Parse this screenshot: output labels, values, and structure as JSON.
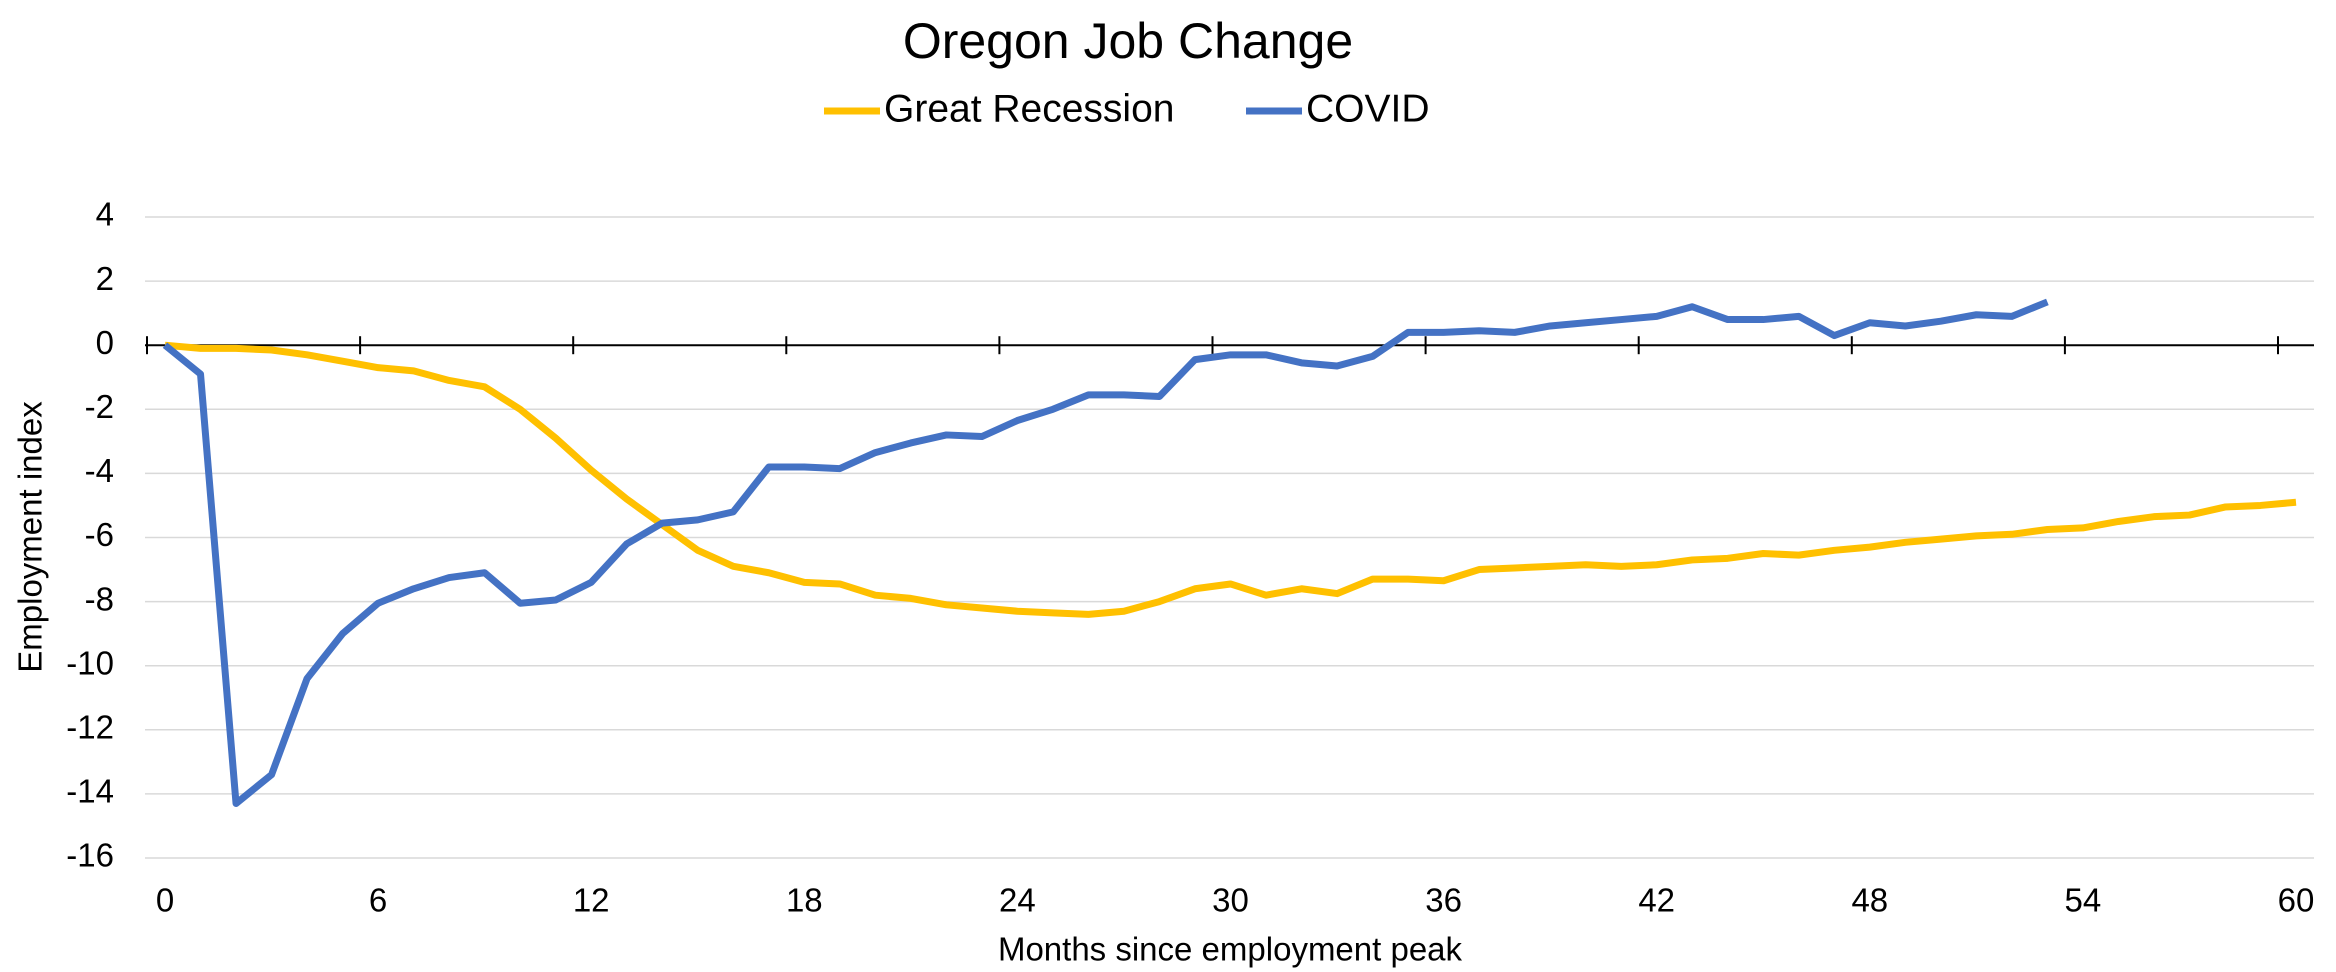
{
  "chart_data": {
    "type": "line",
    "title": "Oregon Job Change",
    "x_label": "Months since employment peak",
    "y_label": "Employment index",
    "x": [
      0,
      1,
      2,
      3,
      4,
      5,
      6,
      7,
      8,
      9,
      10,
      11,
      12,
      13,
      14,
      15,
      16,
      17,
      18,
      19,
      20,
      21,
      22,
      23,
      24,
      25,
      26,
      27,
      28,
      29,
      30,
      31,
      32,
      33,
      34,
      35,
      36,
      37,
      38,
      39,
      40,
      41,
      42,
      43,
      44,
      45,
      46,
      47,
      48,
      49,
      50,
      51,
      52,
      53,
      54,
      55,
      56,
      57,
      58,
      59,
      60
    ],
    "series": [
      {
        "name": "Great Recession",
        "color": "#FFC000",
        "values": [
          0,
          -0.1,
          -0.1,
          -0.15,
          -0.3,
          -0.5,
          -0.7,
          -0.8,
          -1.1,
          -1.3,
          -2.0,
          -2.9,
          -3.9,
          -4.8,
          -5.6,
          -6.4,
          -6.9,
          -7.1,
          -7.4,
          -7.45,
          -7.8,
          -7.9,
          -8.1,
          -8.2,
          -8.3,
          -8.35,
          -8.4,
          -8.3,
          -8.0,
          -7.6,
          -7.45,
          -7.8,
          -7.6,
          -7.75,
          -7.3,
          -7.3,
          -7.35,
          -7.0,
          -6.95,
          -6.9,
          -6.85,
          -6.9,
          -6.85,
          -6.7,
          -6.65,
          -6.5,
          -6.55,
          -6.4,
          -6.3,
          -6.15,
          -6.05,
          -5.95,
          -5.9,
          -5.75,
          -5.7,
          -5.5,
          -5.35,
          -5.3,
          -5.05,
          -5.0,
          -4.9
        ]
      },
      {
        "name": "COVID",
        "color": "#4472C4",
        "values": [
          0,
          -0.9,
          -14.3,
          -13.4,
          -10.4,
          -9.0,
          -8.05,
          -7.6,
          -7.25,
          -7.1,
          -8.05,
          -7.95,
          -7.4,
          -6.2,
          -5.55,
          -5.45,
          -5.2,
          -3.8,
          -3.8,
          -3.85,
          -3.35,
          -3.05,
          -2.8,
          -2.85,
          -2.35,
          -2.0,
          -1.55,
          -1.55,
          -1.6,
          -0.45,
          -0.3,
          -0.3,
          -0.55,
          -0.65,
          -0.35,
          0.4,
          0.4,
          0.45,
          0.4,
          0.6,
          0.7,
          0.8,
          0.9,
          1.2,
          0.8,
          0.8,
          0.9,
          0.3,
          0.7,
          0.6,
          0.75,
          0.95,
          0.9,
          1.35,
          null,
          null,
          null,
          null,
          null,
          null,
          null
        ]
      }
    ],
    "xlim": [
      0,
      60
    ],
    "xticks": [
      0,
      6,
      12,
      18,
      24,
      30,
      36,
      42,
      48,
      54,
      60
    ],
    "ylim": [
      -16,
      4
    ],
    "yticks": [
      4,
      2,
      0,
      -2,
      -4,
      -6,
      -8,
      -10,
      -12,
      -14,
      -16
    ],
    "grid": true,
    "legend": "top"
  }
}
